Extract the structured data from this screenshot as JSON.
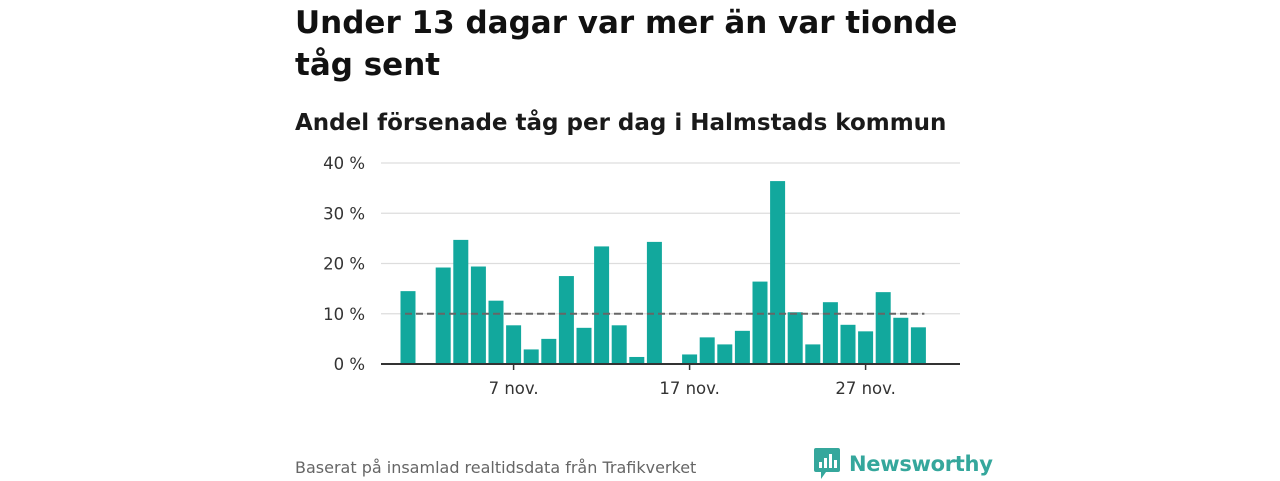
{
  "title": "Under 13 dagar var mer än var tionde tåg sent",
  "subtitle": "Andel försenade tåg per dag i Halmstads kommun",
  "source": "Baserat på insamlad realtidsdata från Trafikverket",
  "brand": {
    "name": "Newsworthy",
    "icon": "newsworthy-logo-icon",
    "color": "#35a79c"
  },
  "colors": {
    "bar": "#12a89d",
    "reference_line": "#666666",
    "grid": "#dddddd",
    "axis": "#333333"
  },
  "chart_data": {
    "type": "bar",
    "x": [
      "1 nov.",
      "2 nov.",
      "3 nov.",
      "4 nov.",
      "5 nov.",
      "6 nov.",
      "7 nov.",
      "8 nov.",
      "9 nov.",
      "10 nov.",
      "11 nov.",
      "12 nov.",
      "13 nov.",
      "14 nov.",
      "15 nov.",
      "16 nov.",
      "17 nov.",
      "18 nov.",
      "19 nov.",
      "20 nov.",
      "21 nov.",
      "22 nov.",
      "23 nov.",
      "24 nov.",
      "25 nov.",
      "26 nov.",
      "27 nov.",
      "28 nov.",
      "29 nov.",
      "30 nov."
    ],
    "values": [
      14.5,
      null,
      19.2,
      24.7,
      19.4,
      12.6,
      7.7,
      2.9,
      5.0,
      17.5,
      7.2,
      23.4,
      7.7,
      1.4,
      24.3,
      null,
      1.9,
      5.3,
      3.9,
      6.6,
      16.4,
      36.4,
      10.3,
      3.9,
      12.3,
      7.8,
      6.5,
      14.3,
      9.2,
      7.3
    ],
    "x_ticks": [
      {
        "index": 6,
        "label": "7 nov."
      },
      {
        "index": 16,
        "label": "17 nov."
      },
      {
        "index": 26,
        "label": "27 nov."
      }
    ],
    "y_ticks": [
      {
        "value": 0,
        "label": "0 %"
      },
      {
        "value": 10,
        "label": "10 %"
      },
      {
        "value": 20,
        "label": "20 %"
      },
      {
        "value": 30,
        "label": "30 %"
      },
      {
        "value": 40,
        "label": "40 %"
      }
    ],
    "ylim": [
      0,
      40
    ],
    "reference_line": 10,
    "grid": true
  }
}
